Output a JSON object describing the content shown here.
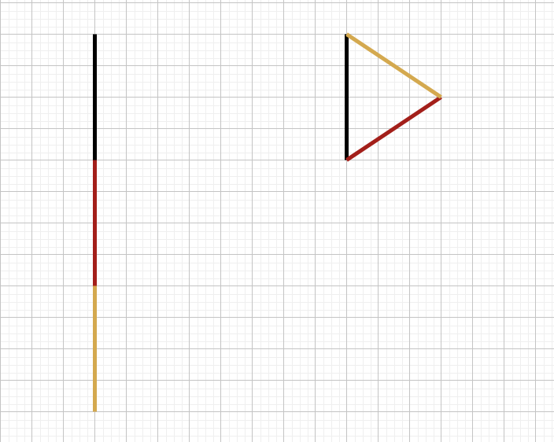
{
  "colors": {
    "background": "#ffffff",
    "grid_minor": "#efefef",
    "grid_major": "#c4c4c4",
    "black": "#000000",
    "red": "#a31f1a",
    "gold": "#d4a94f"
  },
  "diagram": {
    "grid": true,
    "figures": [
      {
        "name": "straight-line-of-three-segments",
        "segments": [
          {
            "color": "black",
            "from": [
              3,
              1
            ],
            "to": [
              3,
              5
            ]
          },
          {
            "color": "red",
            "from": [
              3,
              5
            ],
            "to": [
              3,
              9
            ]
          },
          {
            "color": "gold",
            "from": [
              3,
              9
            ],
            "to": [
              3,
              13
            ]
          }
        ]
      },
      {
        "name": "triangle-of-three-segments",
        "segments": [
          {
            "color": "black",
            "from": [
              11,
              1
            ],
            "to": [
              11,
              5
            ]
          },
          {
            "color": "red",
            "from": [
              11,
              5
            ],
            "to": [
              14,
              3
            ]
          },
          {
            "color": "gold",
            "from": [
              14,
              3
            ],
            "to": [
              11,
              1
            ]
          }
        ]
      }
    ]
  }
}
